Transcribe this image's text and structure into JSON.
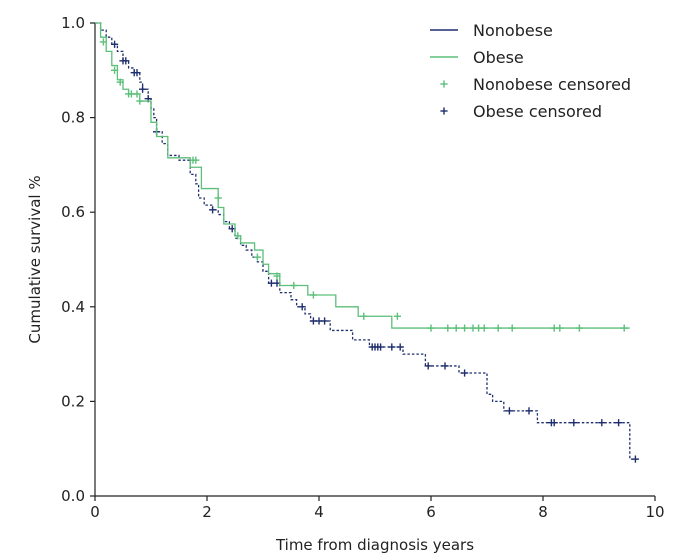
{
  "chart_data": {
    "type": "line",
    "title": "",
    "xlabel": "Time from diagnosis years",
    "ylabel": "Cumulative survival %",
    "xlim": [
      0,
      10
    ],
    "ylim": [
      0,
      1
    ],
    "xticks": [
      0,
      2,
      4,
      6,
      8,
      10
    ],
    "yticks": [
      0.0,
      0.2,
      0.4,
      0.6,
      0.8,
      1.0
    ],
    "xtick_labels": [
      "0",
      "2",
      "4",
      "6",
      "8",
      "10"
    ],
    "ytick_labels": [
      "0.0",
      "0.2",
      "0.4",
      "0.6",
      "0.8",
      "1.0"
    ],
    "grid": false,
    "legend_position": "top-right",
    "legend": [
      {
        "label": "Nonobese",
        "kind": "line",
        "color": "#1f2f6e"
      },
      {
        "label": "Obese",
        "kind": "line",
        "color": "#5cbf7a"
      },
      {
        "label": "Nonobese censored",
        "kind": "plus",
        "color": "#5cbf7a"
      },
      {
        "label": "Obese censored",
        "kind": "plus",
        "color": "#1f2f6e"
      }
    ],
    "series": [
      {
        "name": "Nonobese",
        "color": "#1f2f6e",
        "dash": true,
        "steps": [
          [
            0,
            1.0
          ],
          [
            0.1,
            0.985
          ],
          [
            0.2,
            0.97
          ],
          [
            0.3,
            0.955
          ],
          [
            0.4,
            0.94
          ],
          [
            0.5,
            0.92
          ],
          [
            0.6,
            0.905
          ],
          [
            0.7,
            0.895
          ],
          [
            0.8,
            0.875
          ],
          [
            0.85,
            0.86
          ],
          [
            0.95,
            0.84
          ],
          [
            1.0,
            0.82
          ],
          [
            1.05,
            0.8
          ],
          [
            1.1,
            0.77
          ],
          [
            1.2,
            0.745
          ],
          [
            1.3,
            0.72
          ],
          [
            1.5,
            0.71
          ],
          [
            1.7,
            0.68
          ],
          [
            1.8,
            0.66
          ],
          [
            1.85,
            0.63
          ],
          [
            1.95,
            0.615
          ],
          [
            2.1,
            0.605
          ],
          [
            2.2,
            0.595
          ],
          [
            2.3,
            0.58
          ],
          [
            2.4,
            0.565
          ],
          [
            2.5,
            0.545
          ],
          [
            2.6,
            0.53
          ],
          [
            2.7,
            0.52
          ],
          [
            2.8,
            0.505
          ],
          [
            2.9,
            0.495
          ],
          [
            3.0,
            0.475
          ],
          [
            3.1,
            0.45
          ],
          [
            3.3,
            0.43
          ],
          [
            3.5,
            0.415
          ],
          [
            3.6,
            0.4
          ],
          [
            3.75,
            0.385
          ],
          [
            3.85,
            0.37
          ],
          [
            4.2,
            0.35
          ],
          [
            4.6,
            0.33
          ],
          [
            4.9,
            0.315
          ],
          [
            5.5,
            0.3
          ],
          [
            5.9,
            0.275
          ],
          [
            6.5,
            0.26
          ],
          [
            7.0,
            0.215
          ],
          [
            7.1,
            0.2
          ],
          [
            7.3,
            0.18
          ],
          [
            7.9,
            0.155
          ],
          [
            9.55,
            0.155
          ],
          [
            9.55,
            0.078
          ],
          [
            9.7,
            0.078
          ]
        ],
        "censored": [
          [
            0.35,
            0.955
          ],
          [
            0.5,
            0.92
          ],
          [
            0.55,
            0.92
          ],
          [
            0.7,
            0.895
          ],
          [
            0.75,
            0.895
          ],
          [
            0.85,
            0.86
          ],
          [
            0.95,
            0.84
          ],
          [
            1.1,
            0.77
          ],
          [
            2.1,
            0.605
          ],
          [
            2.45,
            0.565
          ],
          [
            3.15,
            0.45
          ],
          [
            3.25,
            0.45
          ],
          [
            3.7,
            0.4
          ],
          [
            3.9,
            0.37
          ],
          [
            4.0,
            0.37
          ],
          [
            4.1,
            0.37
          ],
          [
            4.95,
            0.315
          ],
          [
            5.0,
            0.315
          ],
          [
            5.05,
            0.315
          ],
          [
            5.1,
            0.315
          ],
          [
            5.3,
            0.315
          ],
          [
            5.45,
            0.315
          ],
          [
            5.95,
            0.275
          ],
          [
            6.25,
            0.275
          ],
          [
            6.6,
            0.26
          ],
          [
            7.4,
            0.18
          ],
          [
            7.75,
            0.18
          ],
          [
            8.15,
            0.155
          ],
          [
            8.2,
            0.155
          ],
          [
            8.55,
            0.155
          ],
          [
            9.05,
            0.155
          ],
          [
            9.35,
            0.155
          ],
          [
            9.65,
            0.078
          ]
        ]
      },
      {
        "name": "Obese",
        "color": "#5cbf7a",
        "dash": false,
        "steps": [
          [
            0,
            1.0
          ],
          [
            0.1,
            0.97
          ],
          [
            0.2,
            0.94
          ],
          [
            0.3,
            0.91
          ],
          [
            0.4,
            0.88
          ],
          [
            0.5,
            0.86
          ],
          [
            0.6,
            0.85
          ],
          [
            0.8,
            0.835
          ],
          [
            1.0,
            0.79
          ],
          [
            1.1,
            0.76
          ],
          [
            1.3,
            0.715
          ],
          [
            1.7,
            0.695
          ],
          [
            1.9,
            0.65
          ],
          [
            2.2,
            0.61
          ],
          [
            2.3,
            0.575
          ],
          [
            2.5,
            0.55
          ],
          [
            2.6,
            0.535
          ],
          [
            2.85,
            0.52
          ],
          [
            3.0,
            0.49
          ],
          [
            3.1,
            0.47
          ],
          [
            3.3,
            0.445
          ],
          [
            3.8,
            0.425
          ],
          [
            4.3,
            0.4
          ],
          [
            4.7,
            0.38
          ],
          [
            5.3,
            0.355
          ],
          [
            9.55,
            0.355
          ]
        ],
        "censored": [
          [
            0.15,
            0.96
          ],
          [
            0.35,
            0.9
          ],
          [
            0.45,
            0.875
          ],
          [
            0.6,
            0.85
          ],
          [
            0.65,
            0.85
          ],
          [
            0.75,
            0.85
          ],
          [
            0.8,
            0.835
          ],
          [
            1.75,
            0.71
          ],
          [
            1.8,
            0.71
          ],
          [
            2.2,
            0.63
          ],
          [
            2.55,
            0.55
          ],
          [
            2.9,
            0.505
          ],
          [
            3.25,
            0.465
          ],
          [
            3.55,
            0.445
          ],
          [
            3.9,
            0.425
          ],
          [
            4.8,
            0.38
          ],
          [
            5.4,
            0.38
          ],
          [
            6.0,
            0.355
          ],
          [
            6.3,
            0.355
          ],
          [
            6.45,
            0.355
          ],
          [
            6.6,
            0.355
          ],
          [
            6.75,
            0.355
          ],
          [
            6.85,
            0.355
          ],
          [
            6.95,
            0.355
          ],
          [
            7.2,
            0.355
          ],
          [
            7.45,
            0.355
          ],
          [
            8.2,
            0.355
          ],
          [
            8.3,
            0.355
          ],
          [
            8.65,
            0.355
          ],
          [
            9.45,
            0.355
          ]
        ]
      }
    ]
  }
}
